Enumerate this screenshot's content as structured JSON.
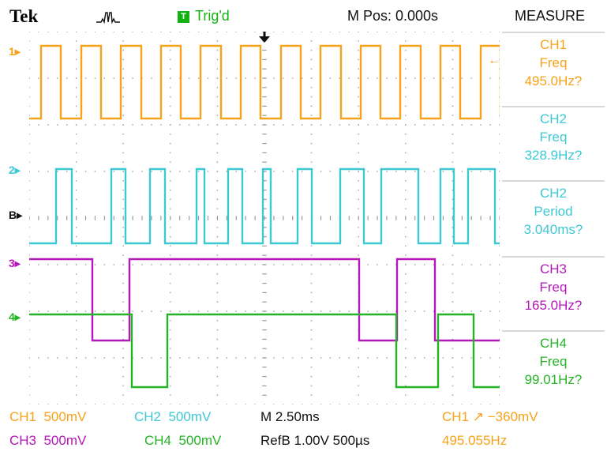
{
  "header": {
    "brand": "Tek",
    "trigger_badge": "T",
    "trigger_status": "Trig'd",
    "m_pos": "M Pos: 0.000s",
    "menu_title": "MEASURE"
  },
  "colors": {
    "ch1": "#f7a21b",
    "ch2": "#3ec8d4",
    "ch3": "#b318b8",
    "ch4": "#27b327",
    "grid": "#9a9a9a",
    "text": "#111111"
  },
  "channel_markers": [
    {
      "label": "1",
      "color": "#f7a21b"
    },
    {
      "label": "2",
      "color": "#3ec8d4"
    },
    {
      "label": "B",
      "color": "#111111"
    },
    {
      "label": "3",
      "color": "#b318b8"
    },
    {
      "label": "4",
      "color": "#27b327"
    }
  ],
  "measurements": [
    {
      "channel": "CH1",
      "type": "Freq",
      "value": "495.0Hz",
      "flag": "?",
      "color": "#f7a21b"
    },
    {
      "channel": "CH2",
      "type": "Freq",
      "value": "328.9Hz",
      "flag": "?",
      "color": "#3ec8d4"
    },
    {
      "channel": "CH2",
      "type": "Period",
      "value": "3.040ms",
      "flag": "?",
      "color": "#3ec8d4"
    },
    {
      "channel": "CH3",
      "type": "Freq",
      "value": "165.0Hz",
      "flag": "?",
      "color": "#b318b8"
    },
    {
      "channel": "CH4",
      "type": "Freq",
      "value": "99.01Hz",
      "flag": "?",
      "color": "#27b327"
    }
  ],
  "bottom": {
    "ch1_label": "CH1",
    "ch1_scale": "500mV",
    "ch2_label": "CH2",
    "ch2_scale": "500mV",
    "ch3_label": "CH3",
    "ch3_scale": "500mV",
    "ch4_label": "CH4",
    "ch4_scale": "500mV",
    "timebase": "M 2.50ms",
    "refb": "RefB 1.00V 500µs",
    "trigger_source": "CH1",
    "trigger_level": "−360mV",
    "trigger_freq": "495.055Hz"
  }
}
